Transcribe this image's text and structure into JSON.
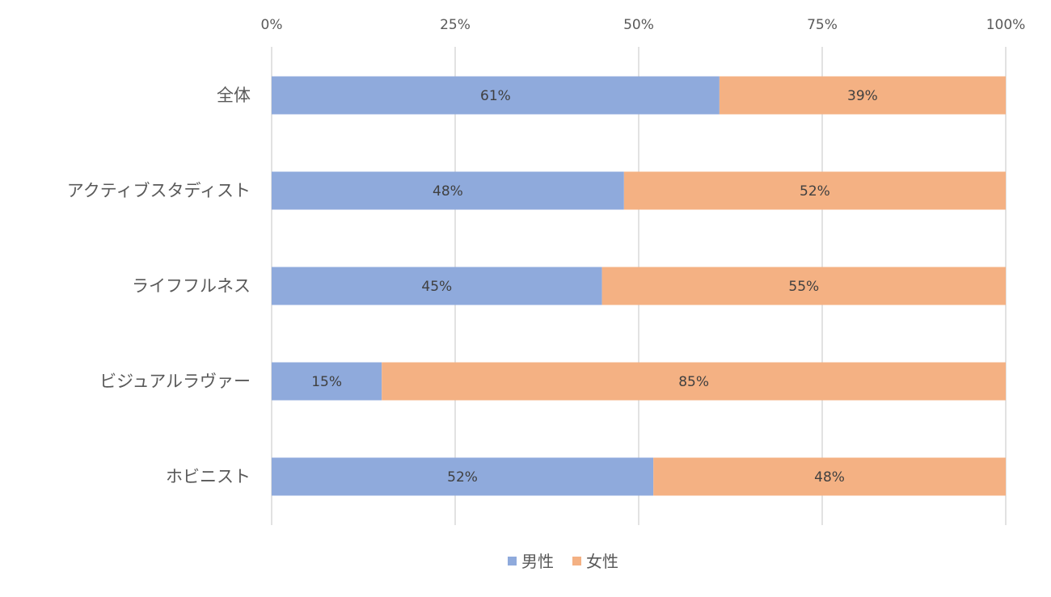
{
  "chart_data": {
    "type": "bar",
    "orientation": "horizontal",
    "stacked": "percent",
    "title": "",
    "xlabel": "",
    "ylabel": "",
    "xlim": [
      0,
      100
    ],
    "x_ticks": [
      "0%",
      "25%",
      "50%",
      "75%",
      "100%"
    ],
    "x_tick_values": [
      0,
      25,
      50,
      75,
      100
    ],
    "grid": true,
    "legend_position": "bottom",
    "categories": [
      "全体",
      "アクティブスタディスト",
      "ライフフルネス",
      "ビジュアルラヴァー",
      "ホビニスト"
    ],
    "series": [
      {
        "name": "男性",
        "color": "#8faadc",
        "values": [
          61,
          48,
          45,
          15,
          52
        ],
        "labels": [
          "61%",
          "48%",
          "45%",
          "15%",
          "52%"
        ]
      },
      {
        "name": "女性",
        "color": "#f4b183",
        "values": [
          39,
          52,
          55,
          85,
          48
        ],
        "labels": [
          "39%",
          "52%",
          "55%",
          "85%",
          "48%"
        ]
      }
    ]
  }
}
